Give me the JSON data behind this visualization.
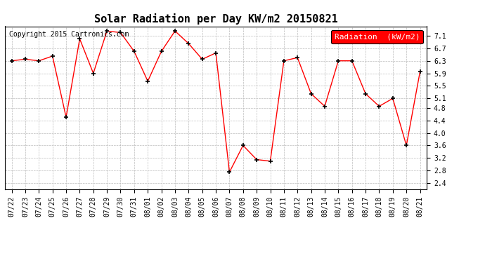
{
  "title": "Solar Radiation per Day KW/m2 20150821",
  "copyright": "Copyright 2015 Cartronics.com",
  "legend_label": "Radiation  (kW/m2)",
  "x_labels": [
    "07/22",
    "07/23",
    "07/24",
    "07/25",
    "07/26",
    "07/27",
    "07/28",
    "07/29",
    "07/30",
    "07/31",
    "08/01",
    "08/02",
    "08/03",
    "08/04",
    "08/05",
    "08/06",
    "08/07",
    "08/08",
    "08/09",
    "08/10",
    "08/11",
    "08/12",
    "08/13",
    "08/14",
    "08/15",
    "08/16",
    "08/17",
    "08/18",
    "08/19",
    "08/20",
    "08/21"
  ],
  "y_values": [
    6.3,
    6.35,
    6.3,
    6.45,
    4.5,
    7.0,
    5.9,
    7.25,
    7.2,
    6.6,
    5.65,
    6.6,
    7.25,
    6.85,
    6.35,
    6.55,
    2.75,
    3.6,
    3.15,
    3.1,
    6.3,
    6.4,
    5.25,
    4.85,
    6.3,
    6.3,
    5.25,
    4.85,
    5.1,
    3.6,
    5.95
  ],
  "ylim": [
    2.2,
    7.4
  ],
  "yticks": [
    2.4,
    2.8,
    3.2,
    3.6,
    4.0,
    4.4,
    4.8,
    5.1,
    5.5,
    5.9,
    6.3,
    6.7,
    7.1
  ],
  "line_color": "red",
  "marker_color": "black",
  "bg_color": "white",
  "grid_color": "#bbbbbb",
  "legend_bg": "red",
  "legend_text_color": "white",
  "title_fontsize": 11,
  "copyright_fontsize": 7,
  "tick_fontsize": 7,
  "legend_fontsize": 8
}
